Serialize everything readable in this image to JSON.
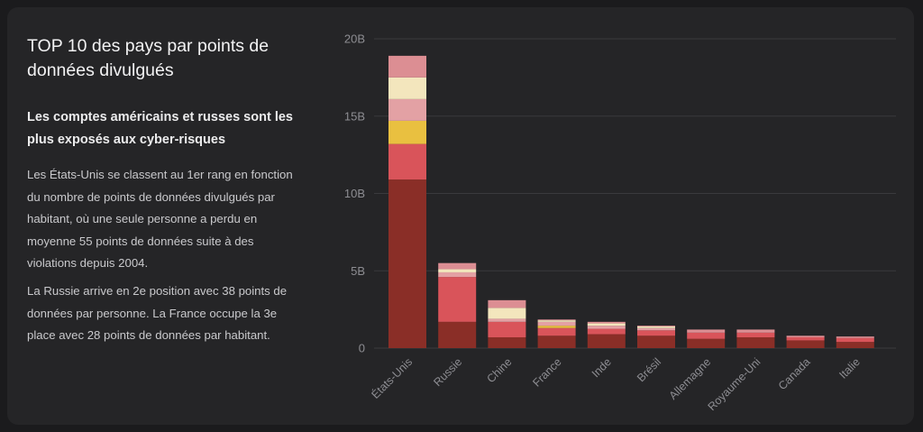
{
  "text": {
    "title": "TOP 10 des pays par points de données divulgués",
    "subtitle": "Les comptes américains et russes sont les plus exposés aux cyber-risques",
    "paragraph1": "Les États-Unis se classent au 1er rang en fonction du nombre de points de données divulgués par habitant, où une seule personne a perdu en moyenne 55 points de données suite à des violations depuis 2004.",
    "paragraph2": "La Russie arrive en 2e position avec 38 points de données par personne. La France occupe la 3e place avec 28 points de données par habitant."
  },
  "chart_data": {
    "type": "bar",
    "stacked": true,
    "title": "TOP 10 des pays par points de données divulgués",
    "xlabel": "",
    "ylabel": "",
    "ylim": [
      0,
      20000000000
    ],
    "yticks": [
      {
        "value": 0,
        "label": "0"
      },
      {
        "value": 5000000000,
        "label": "5B"
      },
      {
        "value": 10000000000,
        "label": "10B"
      },
      {
        "value": 15000000000,
        "label": "15B"
      },
      {
        "value": 20000000000,
        "label": "20B"
      }
    ],
    "grid": true,
    "legend": "none",
    "categories": [
      "États-Unis",
      "Russie",
      "Chine",
      "France",
      "Inde",
      "Brésil",
      "Allemagne",
      "Royaume-Uni",
      "Canada",
      "Italie"
    ],
    "series": [
      {
        "name": "s1",
        "color": "#8a2e27",
        "values": [
          10900000000,
          1700000000,
          700000000,
          800000000,
          900000000,
          800000000,
          600000000,
          700000000,
          500000000,
          400000000
        ]
      },
      {
        "name": "s2",
        "color": "#d9545a",
        "values": [
          2300000000,
          2900000000,
          1000000000,
          500000000,
          350000000,
          350000000,
          400000000,
          300000000,
          200000000,
          250000000
        ]
      },
      {
        "name": "s3",
        "color": "#e9c040",
        "values": [
          1500000000,
          0,
          0,
          150000000,
          0,
          0,
          0,
          0,
          0,
          0
        ]
      },
      {
        "name": "s4",
        "color": "#e3a1a4",
        "values": [
          1400000000,
          300000000,
          200000000,
          250000000,
          200000000,
          150000000,
          0,
          0,
          0,
          0
        ]
      },
      {
        "name": "s5",
        "color": "#f3e6bd",
        "values": [
          1400000000,
          200000000,
          700000000,
          100000000,
          150000000,
          100000000,
          0,
          0,
          0,
          0
        ]
      },
      {
        "name": "s6",
        "color": "#dc8e93",
        "values": [
          1400000000,
          400000000,
          500000000,
          50000000,
          100000000,
          50000000,
          200000000,
          200000000,
          100000000,
          100000000
        ]
      }
    ]
  }
}
